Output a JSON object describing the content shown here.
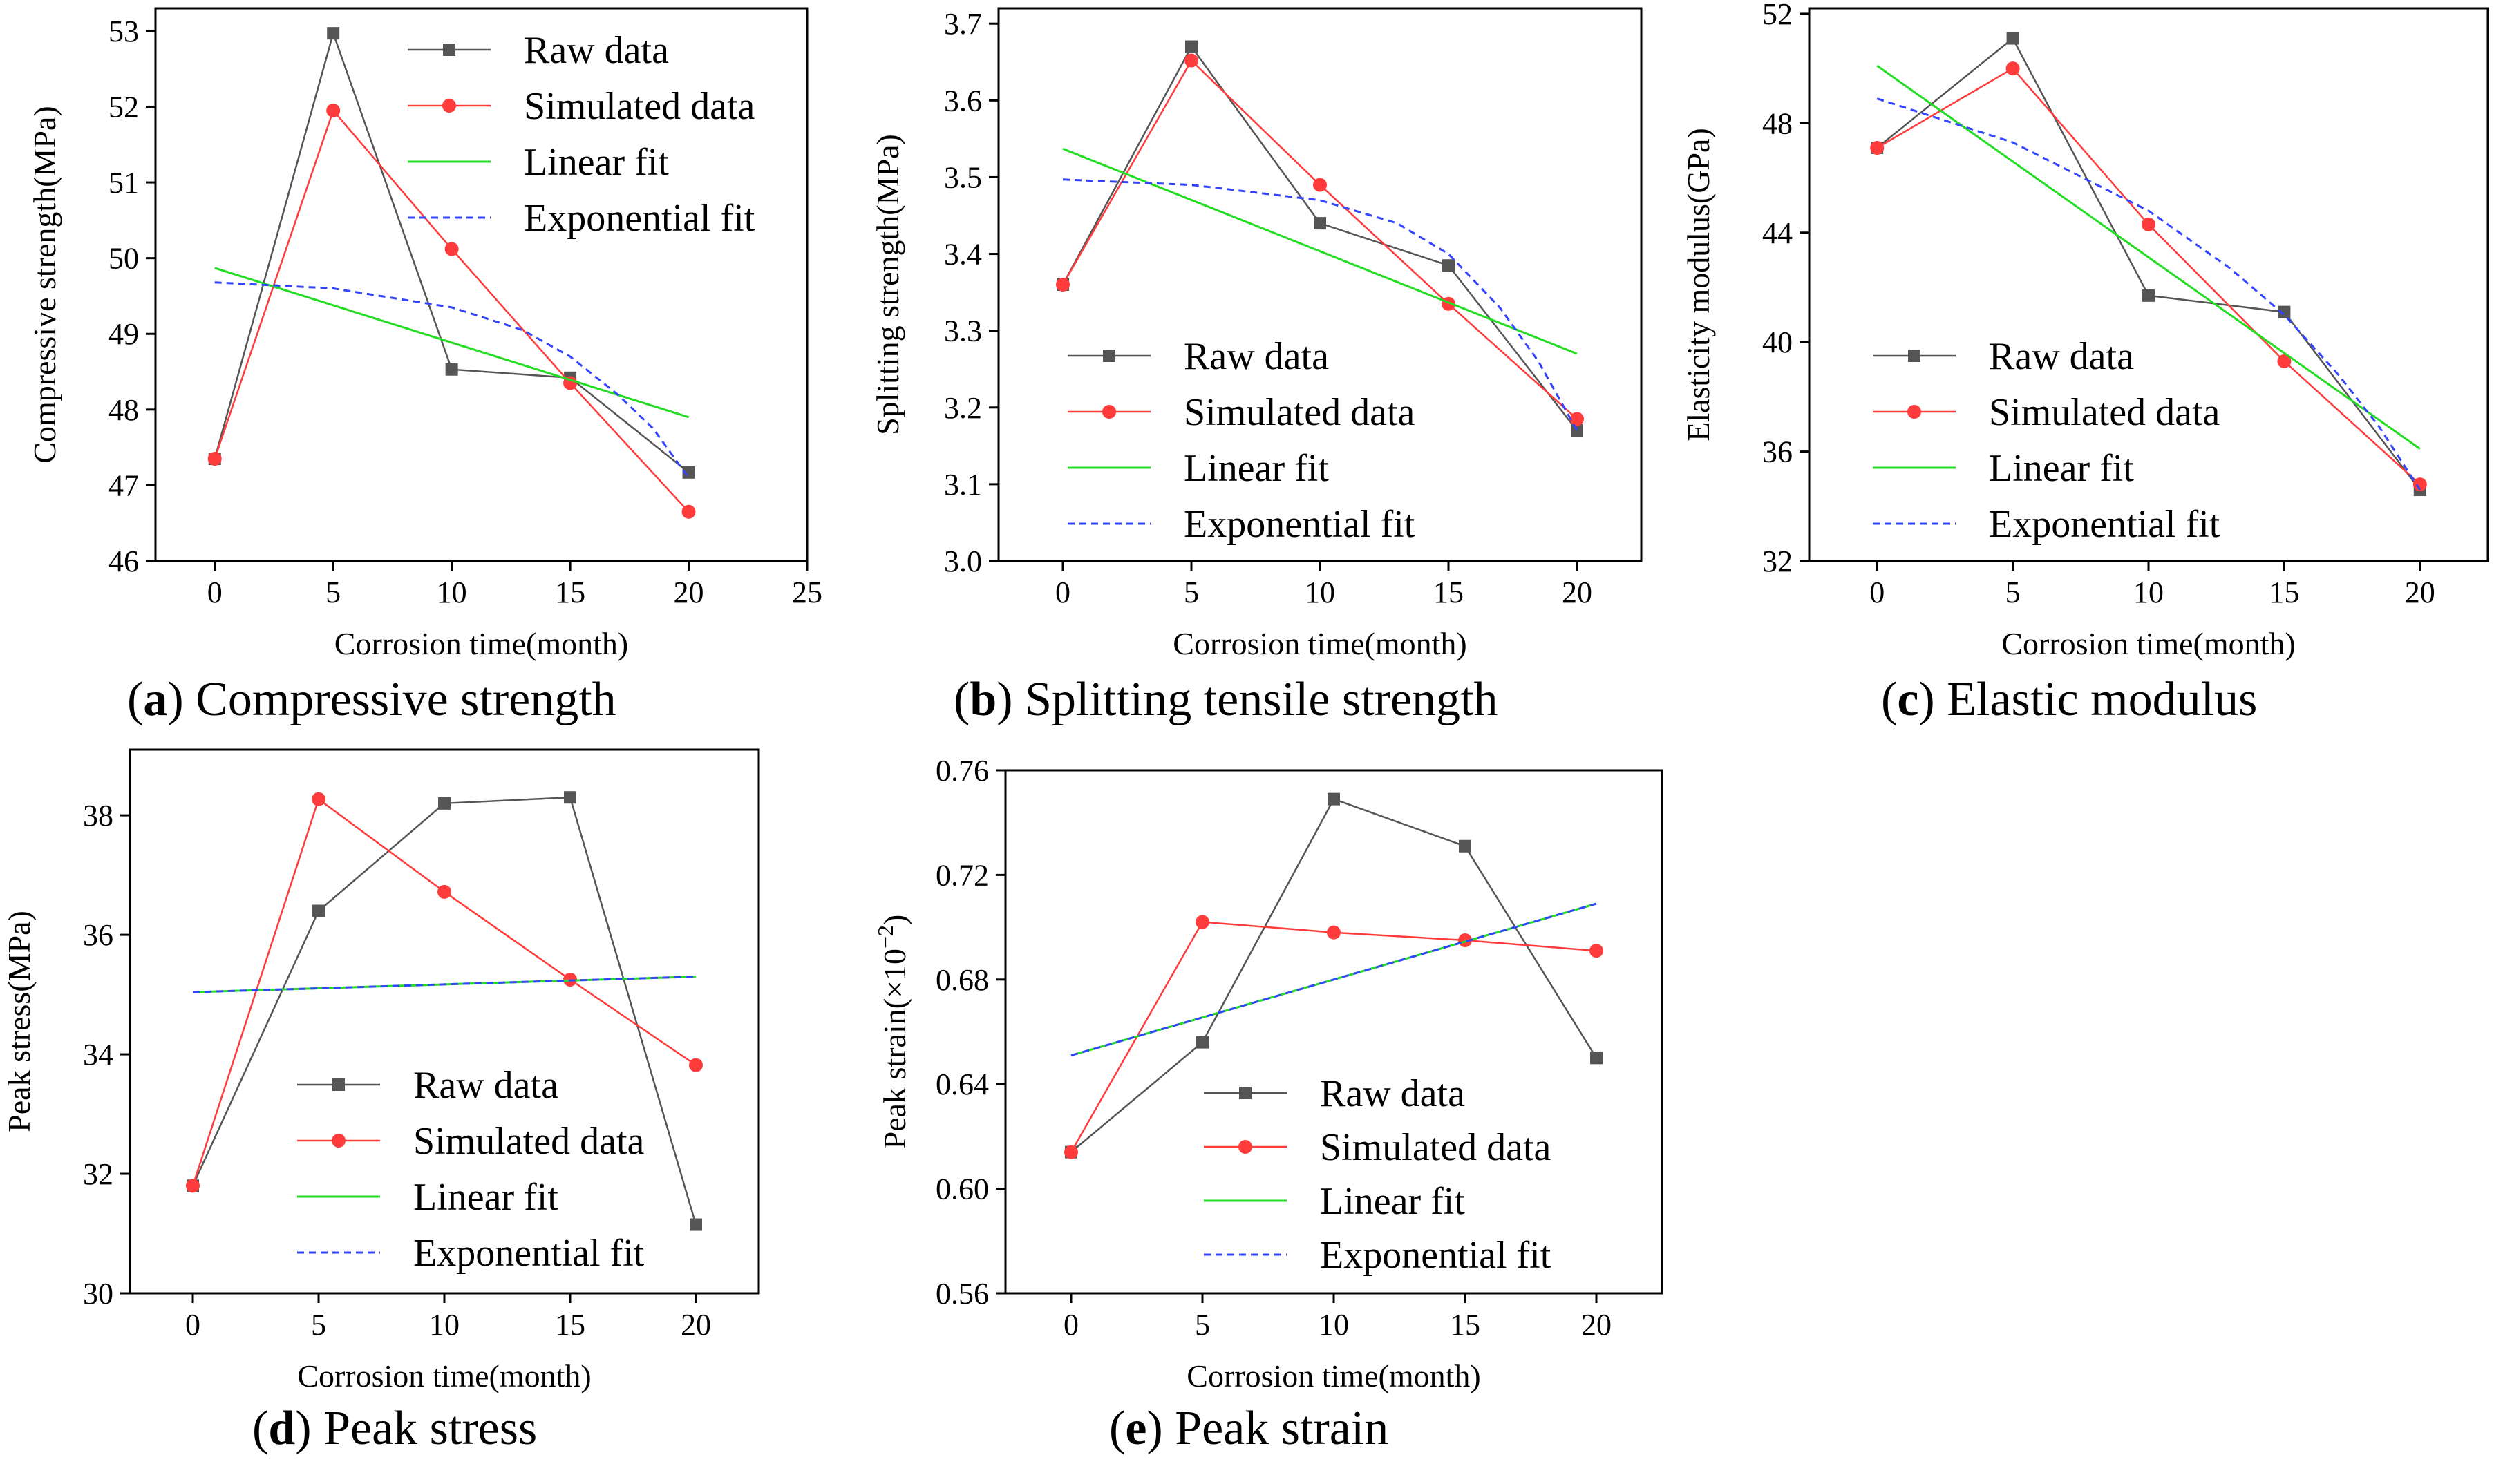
{
  "colors": {
    "raw": "#555555",
    "simulated": "#ff3b3b",
    "linear": "#22dd22",
    "exponential": "#3344ff",
    "axis": "#000000"
  },
  "chart_data": [
    {
      "id": "a",
      "type": "line",
      "caption_letter": "a",
      "caption_text": "Compressive strength",
      "xlabel": "Corrosion time(month)",
      "ylabel": "Compressive strength(MPa)",
      "xlim": [
        -2.5,
        25
      ],
      "ylim": [
        46,
        53.3
      ],
      "xticks": [
        0,
        5,
        10,
        15,
        20,
        25
      ],
      "yticks": [
        46,
        47,
        48,
        49,
        50,
        51,
        52,
        53
      ],
      "ytick_labels": [
        "46",
        "47",
        "48",
        "49",
        "50",
        "51",
        "52",
        "53"
      ],
      "legend_position": "top-right",
      "x": [
        0,
        5,
        10,
        15,
        20
      ],
      "series": [
        {
          "name": "Raw data",
          "kind": "raw",
          "values": [
            47.35,
            52.97,
            48.53,
            48.42,
            47.17
          ]
        },
        {
          "name": "Simulated data",
          "kind": "simulated",
          "values": [
            47.35,
            51.95,
            50.12,
            48.35,
            46.65
          ]
        },
        {
          "name": "Linear fit",
          "kind": "linear",
          "x": [
            0,
            20
          ],
          "values": [
            49.87,
            47.9
          ]
        },
        {
          "name": "Exponential fit",
          "kind": "exponential",
          "x": [
            0,
            5,
            10,
            13,
            15,
            17,
            18.5,
            20
          ],
          "values": [
            49.68,
            49.6,
            49.35,
            49.05,
            48.7,
            48.2,
            47.75,
            47.1
          ]
        }
      ]
    },
    {
      "id": "b",
      "type": "line",
      "caption_letter": "b",
      "caption_text": "Splitting tensile strength",
      "xlabel": "Corrosion time(month)",
      "ylabel": "Splitting strength(MPa)",
      "xlim": [
        -2.5,
        22.5
      ],
      "ylim": [
        3.0,
        3.72
      ],
      "xticks": [
        0,
        5,
        10,
        15,
        20
      ],
      "yticks": [
        3.0,
        3.1,
        3.2,
        3.3,
        3.4,
        3.5,
        3.6,
        3.7
      ],
      "ytick_labels": [
        "3.0",
        "3.1",
        "3.2",
        "3.3",
        "3.4",
        "3.5",
        "3.6",
        "3.7"
      ],
      "legend_position": "bottom-left",
      "x": [
        0,
        5,
        10,
        15,
        20
      ],
      "series": [
        {
          "name": "Raw data",
          "kind": "raw",
          "values": [
            3.36,
            3.67,
            3.44,
            3.385,
            3.17
          ]
        },
        {
          "name": "Simulated data",
          "kind": "simulated",
          "values": [
            3.36,
            3.652,
            3.49,
            3.335,
            3.185
          ]
        },
        {
          "name": "Linear fit",
          "kind": "linear",
          "x": [
            0,
            20
          ],
          "values": [
            3.537,
            3.27
          ]
        },
        {
          "name": "Exponential fit",
          "kind": "exponential",
          "x": [
            0,
            5,
            10,
            13,
            15,
            17,
            18.5,
            20
          ],
          "values": [
            3.497,
            3.49,
            3.47,
            3.44,
            3.4,
            3.33,
            3.26,
            3.17
          ]
        }
      ]
    },
    {
      "id": "c",
      "type": "line",
      "caption_letter": "c",
      "caption_text": "Elastic modulus",
      "xlabel": "Corrosion time(month)",
      "ylabel": "Elasticity modulus(GPa)",
      "xlim": [
        -2.5,
        22.5
      ],
      "ylim": [
        32,
        52.2
      ],
      "xticks": [
        0,
        5,
        10,
        15,
        20
      ],
      "yticks": [
        32,
        36,
        40,
        44,
        48,
        52
      ],
      "ytick_labels": [
        "32",
        "36",
        "40",
        "44",
        "48",
        "52"
      ],
      "legend_position": "bottom-left",
      "x": [
        0,
        5,
        10,
        15,
        20
      ],
      "series": [
        {
          "name": "Raw data",
          "kind": "raw",
          "values": [
            47.1,
            51.1,
            41.7,
            41.1,
            34.6
          ]
        },
        {
          "name": "Simulated data",
          "kind": "simulated",
          "values": [
            47.1,
            50.0,
            44.3,
            39.3,
            34.8
          ]
        },
        {
          "name": "Linear fit",
          "kind": "linear",
          "x": [
            0,
            20
          ],
          "values": [
            50.1,
            36.1
          ]
        },
        {
          "name": "Exponential fit",
          "kind": "exponential",
          "x": [
            0,
            5,
            10,
            13,
            15,
            17,
            18.5,
            20
          ],
          "values": [
            48.9,
            47.3,
            44.8,
            42.7,
            41.0,
            38.8,
            36.9,
            34.6
          ]
        }
      ]
    },
    {
      "id": "d",
      "type": "line",
      "caption_letter": "d",
      "caption_text": "Peak stress",
      "xlabel": "Corrosion time(month)",
      "ylabel": "Peak stress(MPa)",
      "xlim": [
        -2.5,
        22.5
      ],
      "ylim": [
        30,
        39.1
      ],
      "xticks": [
        0,
        5,
        10,
        15,
        20
      ],
      "yticks": [
        30,
        32,
        34,
        36,
        38
      ],
      "ytick_labels": [
        "30",
        "32",
        "34",
        "36",
        "38"
      ],
      "legend_position": "bottom-right",
      "x": [
        0,
        5,
        10,
        15,
        20
      ],
      "series": [
        {
          "name": "Raw data",
          "kind": "raw",
          "values": [
            31.8,
            36.4,
            38.2,
            38.3,
            31.15
          ]
        },
        {
          "name": "Simulated data",
          "kind": "simulated",
          "values": [
            31.8,
            38.27,
            36.72,
            35.25,
            33.82
          ]
        },
        {
          "name": "Linear fit",
          "kind": "linear",
          "x": [
            0,
            20
          ],
          "values": [
            35.04,
            35.3
          ]
        },
        {
          "name": "Exponential fit",
          "kind": "exponential",
          "x": [
            0,
            20
          ],
          "values": [
            35.04,
            35.3
          ]
        }
      ]
    },
    {
      "id": "e",
      "type": "line",
      "caption_letter": "e",
      "caption_text": "Peak strain",
      "xlabel": "Corrosion time(month)",
      "ylabel": "Peak strain(×10",
      "ylabel_sup": "−2",
      "ylabel_tail": ")",
      "xlim": [
        -2.5,
        22.5
      ],
      "ylim": [
        0.56,
        0.76
      ],
      "xticks": [
        0,
        5,
        10,
        15,
        20
      ],
      "yticks": [
        0.56,
        0.6,
        0.64,
        0.68,
        0.72,
        0.76
      ],
      "ytick_labels": [
        "0.56",
        "0.60",
        "0.64",
        "0.68",
        "0.72",
        "0.76"
      ],
      "legend_position": "bottom-right",
      "x": [
        0,
        5,
        10,
        15,
        20
      ],
      "series": [
        {
          "name": "Raw data",
          "kind": "raw",
          "values": [
            0.614,
            0.656,
            0.749,
            0.731,
            0.65
          ]
        },
        {
          "name": "Simulated data",
          "kind": "simulated",
          "values": [
            0.614,
            0.702,
            0.698,
            0.695,
            0.691
          ]
        },
        {
          "name": "Linear fit",
          "kind": "linear",
          "x": [
            0,
            20
          ],
          "values": [
            0.651,
            0.709
          ]
        },
        {
          "name": "Exponential fit",
          "kind": "exponential",
          "x": [
            0,
            20
          ],
          "values": [
            0.651,
            0.709
          ]
        }
      ]
    }
  ]
}
